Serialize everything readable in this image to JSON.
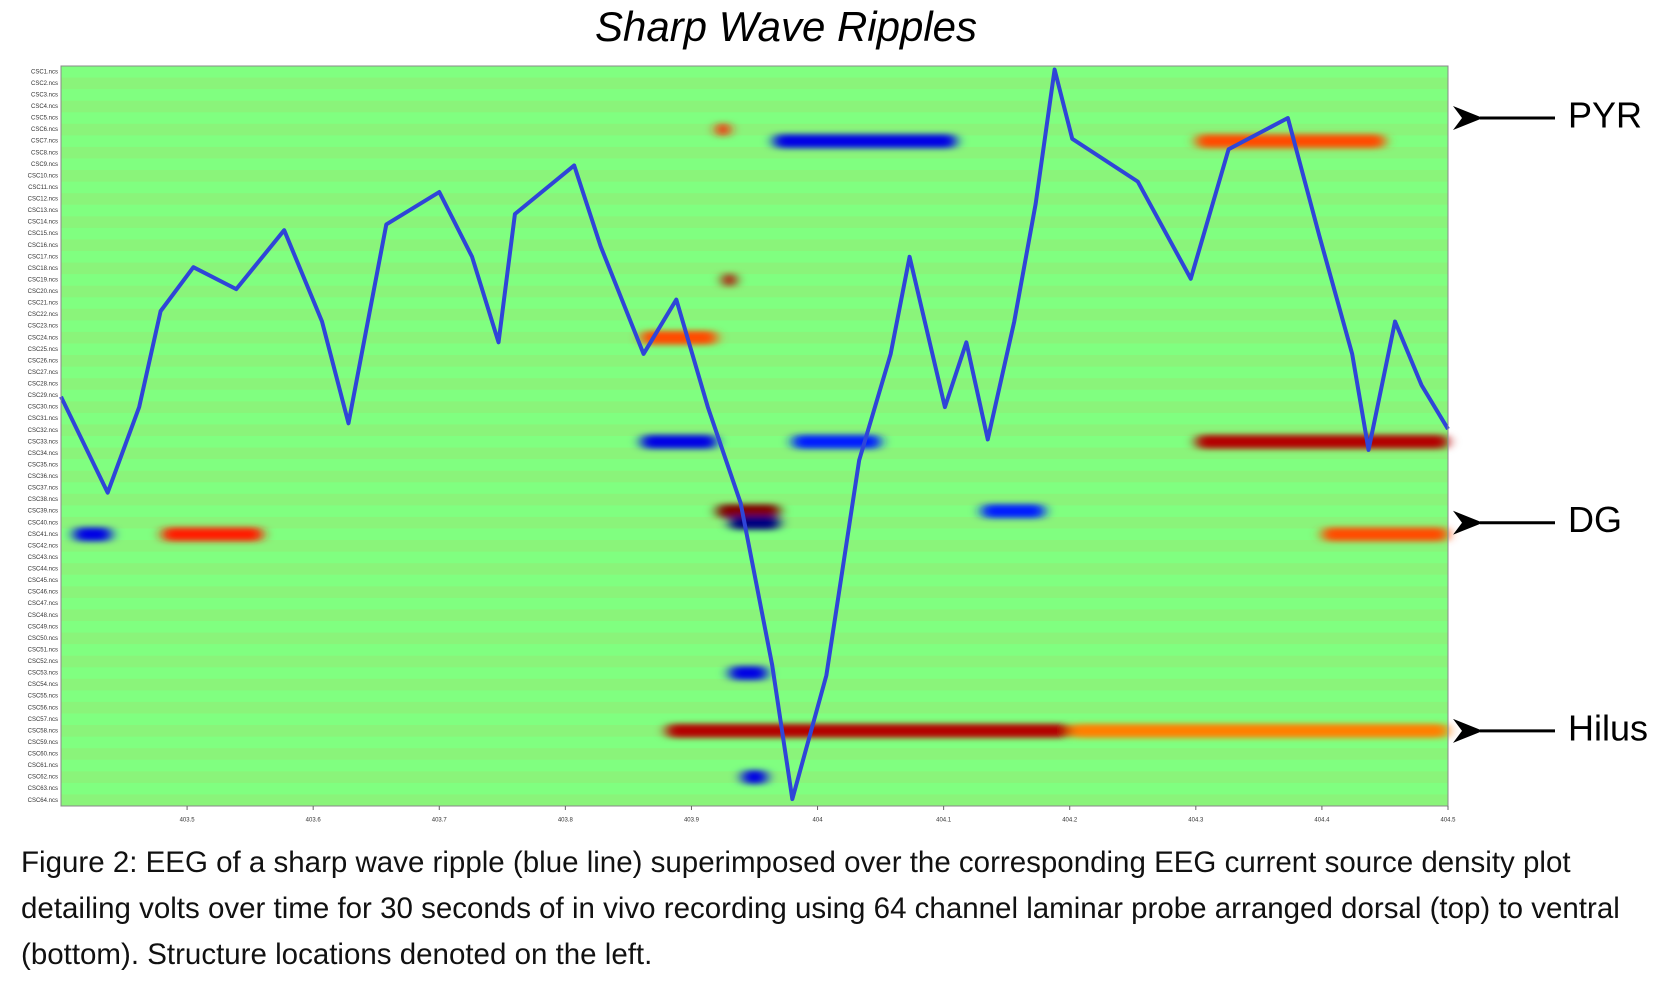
{
  "chart_data": {
    "type": "heatmap",
    "title": "Sharp Wave Ripples",
    "xlim": [
      403.4,
      404.5
    ],
    "xticks": [
      403.5,
      403.6,
      403.7,
      403.8,
      403.9,
      404,
      404.1,
      404.2,
      404.3,
      404.4,
      404.5
    ],
    "ylim": [
      0.5,
      64.5
    ],
    "invert_y": true,
    "categories": [
      "CSC1.ncs",
      "CSC2.ncs",
      "CSC3.ncs",
      "CSC4.ncs",
      "CSC5.ncs",
      "CSC6.ncs",
      "CSC7.ncs",
      "CSC8.ncs",
      "CSC9.ncs",
      "CSC10.ncs",
      "CSC11.ncs",
      "CSC12.ncs",
      "CSC13.ncs",
      "CSC14.ncs",
      "CSC15.ncs",
      "CSC16.ncs",
      "CSC17.ncs",
      "CSC18.ncs",
      "CSC19.ncs",
      "CSC20.ncs",
      "CSC21.ncs",
      "CSC22.ncs",
      "CSC23.ncs",
      "CSC24.ncs",
      "CSC25.ncs",
      "CSC26.ncs",
      "CSC27.ncs",
      "CSC28.ncs",
      "CSC29.ncs",
      "CSC30.ncs",
      "CSC31.ncs",
      "CSC32.ncs",
      "CSC33.ncs",
      "CSC34.ncs",
      "CSC35.ncs",
      "CSC36.ncs",
      "CSC37.ncs",
      "CSC38.ncs",
      "CSC39.ncs",
      "CSC40.ncs",
      "CSC41.ncs",
      "CSC42.ncs",
      "CSC43.ncs",
      "CSC44.ncs",
      "CSC45.ncs",
      "CSC46.ncs",
      "CSC47.ncs",
      "CSC48.ncs",
      "CSC49.ncs",
      "CSC50.ncs",
      "CSC51.ncs",
      "CSC52.ncs",
      "CSC53.ncs",
      "CSC54.ncs",
      "CSC55.ncs",
      "CSC56.ncs",
      "CSC57.ncs",
      "CSC58.ncs",
      "CSC59.ncs",
      "CSC60.ncs",
      "CSC61.ncs",
      "CSC62.ncs",
      "CSC63.ncs",
      "CSC64.ncs"
    ],
    "csd_spots": [
      {
        "channel": 7,
        "x": [
          403.965,
          404.11
        ],
        "value": -0.8
      },
      {
        "channel": 7,
        "x": [
          404.3,
          404.45
        ],
        "value": 0.6
      },
      {
        "channel": 33,
        "x": [
          404.3,
          404.5
        ],
        "value": 0.9
      },
      {
        "channel": 33,
        "x": [
          403.86,
          403.92
        ],
        "value": -0.8
      },
      {
        "channel": 33,
        "x": [
          403.98,
          404.05
        ],
        "value": -0.7
      },
      {
        "channel": 39,
        "x": [
          403.92,
          403.97
        ],
        "value": 1.0
      },
      {
        "channel": 40,
        "x": [
          403.93,
          403.97
        ],
        "value": -1.0
      },
      {
        "channel": 41,
        "x": [
          403.41,
          403.44
        ],
        "value": -0.8
      },
      {
        "channel": 41,
        "x": [
          403.48,
          403.56
        ],
        "value": 0.7
      },
      {
        "channel": 39,
        "x": [
          404.13,
          404.18
        ],
        "value": -0.7
      },
      {
        "channel": 41,
        "x": [
          404.4,
          404.5
        ],
        "value": 0.6
      },
      {
        "channel": 58,
        "x": [
          403.88,
          404.2
        ],
        "value": 0.9
      },
      {
        "channel": 58,
        "x": [
          404.2,
          404.5
        ],
        "value": 0.5
      },
      {
        "channel": 24,
        "x": [
          403.86,
          403.92
        ],
        "value": 0.6
      },
      {
        "channel": 62,
        "x": [
          403.94,
          403.96
        ],
        "value": -0.8
      },
      {
        "channel": 53,
        "x": [
          403.93,
          403.96
        ],
        "value": -0.8
      },
      {
        "channel": 6,
        "x": [
          403.92,
          403.93
        ],
        "value": 0.7
      },
      {
        "channel": 19,
        "x": [
          403.925,
          403.935
        ],
        "value": 0.9
      }
    ],
    "series": [
      {
        "name": "EEG",
        "color": "#2f45d8",
        "x": [
          403.4,
          403.437,
          403.462,
          403.479,
          403.505,
          403.539,
          403.577,
          403.607,
          403.628,
          403.658,
          403.7,
          403.726,
          403.747,
          403.76,
          403.807,
          403.828,
          403.862,
          403.888,
          403.913,
          403.939,
          403.964,
          403.98,
          404.007,
          404.033,
          404.058,
          404.073,
          404.101,
          404.118,
          404.135,
          404.156,
          404.173,
          404.188,
          404.202,
          404.254,
          404.296,
          404.326,
          404.373,
          404.398,
          404.424,
          404.437,
          404.458,
          404.479,
          404.5
        ],
        "values": [
          29.1,
          37.4,
          30.0,
          21.7,
          17.9,
          19.8,
          14.7,
          22.6,
          31.4,
          14.2,
          11.4,
          17.0,
          24.4,
          13.3,
          9.1,
          16.1,
          25.4,
          20.7,
          30.0,
          38.3,
          52.3,
          63.9,
          53.2,
          34.6,
          25.4,
          17.0,
          30.0,
          24.4,
          32.8,
          22.6,
          12.4,
          0.8,
          6.8,
          10.5,
          18.9,
          7.7,
          5.0,
          15.2,
          25.4,
          33.7,
          22.6,
          28.1,
          31.9
        ]
      }
    ],
    "annotations": [
      {
        "text": "PYR",
        "channel": 5
      },
      {
        "text": "DG",
        "channel": 40
      },
      {
        "text": "Hilus",
        "channel": 58
      }
    ],
    "caption": "Figure 2: EEG of a sharp wave ripple (blue line) superimposed over the corresponding EEG current source density plot detailing volts over time for 30 seconds of in vivo recording using 64 channel laminar probe arranged dorsal (top) to ventral (bottom). Structure locations denoted on the left."
  }
}
